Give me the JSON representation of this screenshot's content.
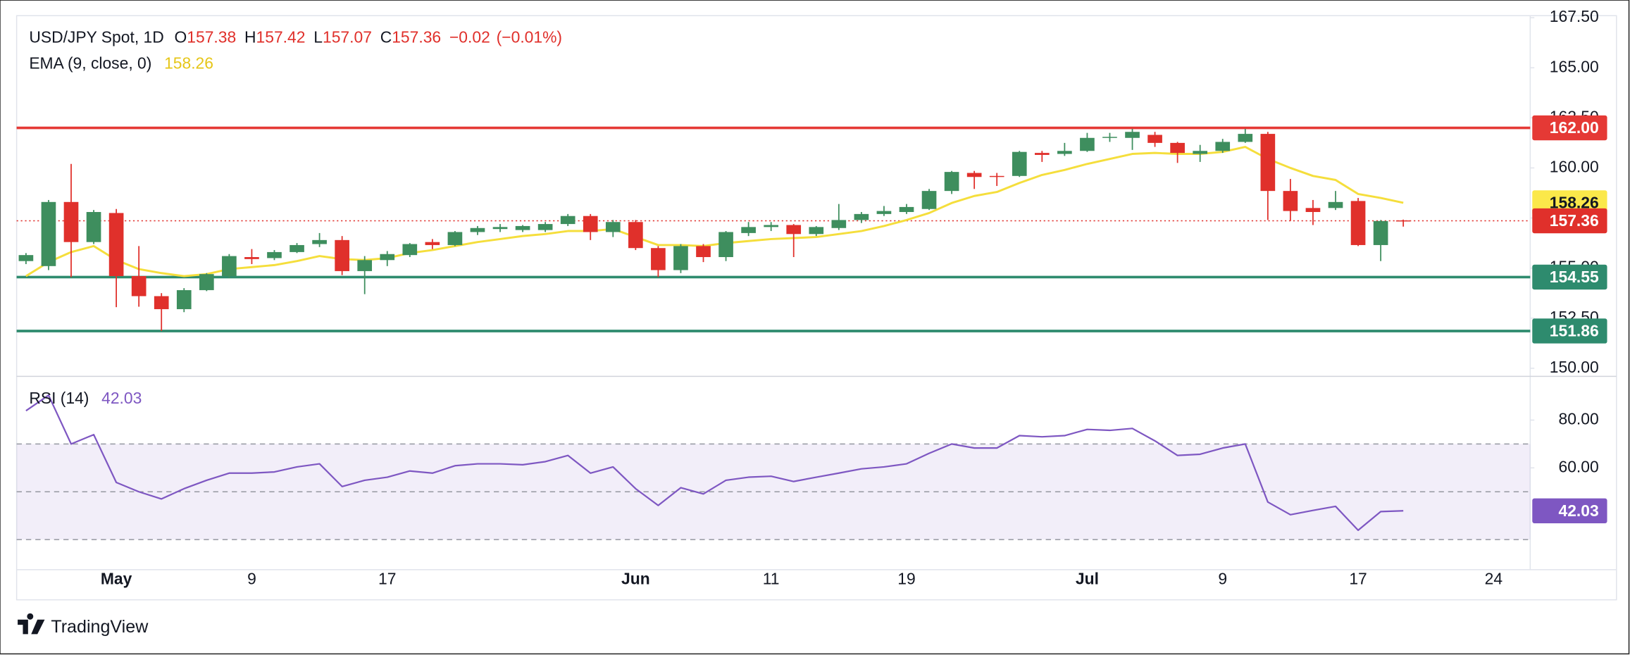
{
  "chart_data": {
    "type": "candlestick",
    "title": "USD/JPY Spot, 1D",
    "ohlc_labels": [
      "O",
      "H",
      "L",
      "C"
    ],
    "change": "−0.02",
    "change_pct": "(−0.01%)",
    "categories": [
      null,
      null,
      null,
      null,
      "May",
      null,
      null,
      null,
      null,
      null,
      "9",
      null,
      null,
      null,
      null,
      null,
      "17",
      null,
      null,
      null,
      null,
      null,
      null,
      null,
      null,
      null,
      null,
      "Jun",
      null,
      null,
      null,
      null,
      null,
      "11",
      null,
      null,
      null,
      null,
      null,
      "19",
      null,
      null,
      null,
      null,
      null,
      null,
      null,
      "Jul",
      null,
      null,
      null,
      null,
      null,
      "9",
      null,
      null,
      null,
      null,
      null,
      "17",
      null,
      null,
      null,
      null,
      null,
      "24",
      null
    ],
    "open": [
      155.35,
      155.1,
      158.3,
      156.3,
      157.75,
      154.6,
      153.6,
      152.95,
      153.9,
      154.6,
      155.55,
      155.5,
      155.8,
      156.2,
      156.4,
      154.85,
      155.4,
      155.65,
      156.3,
      156.15,
      156.8,
      156.95,
      156.9,
      156.9,
      157.2,
      157.6,
      156.8,
      157.3,
      156.0,
      154.9,
      156.1,
      155.55,
      156.75,
      157.05,
      157.15,
      156.7,
      157.0,
      157.4,
      157.7,
      157.8,
      157.95,
      158.85,
      159.75,
      159.6,
      159.6,
      160.75,
      160.7,
      160.85,
      161.5,
      161.5,
      161.65,
      161.25,
      160.7,
      160.85,
      161.3,
      161.7,
      158.85,
      158.0,
      158.0,
      158.35,
      156.15,
      157.38,
      null,
      null,
      null,
      null,
      null
    ],
    "high": [
      155.75,
      158.4,
      160.2,
      157.9,
      157.95,
      156.1,
      153.75,
      154.0,
      154.75,
      155.7,
      155.95,
      155.9,
      156.25,
      156.75,
      156.6,
      155.6,
      155.85,
      156.25,
      156.45,
      156.85,
      157.1,
      157.2,
      157.15,
      157.3,
      157.7,
      157.7,
      157.4,
      157.4,
      156.1,
      156.2,
      156.2,
      156.85,
      157.3,
      157.3,
      157.2,
      157.1,
      158.2,
      157.8,
      158.1,
      158.2,
      158.95,
      159.85,
      159.85,
      159.75,
      160.85,
      160.85,
      161.25,
      161.75,
      161.75,
      161.95,
      161.8,
      161.3,
      161.15,
      161.45,
      161.95,
      161.8,
      159.45,
      158.4,
      158.85,
      158.5,
      157.4,
      157.42,
      null,
      null,
      null,
      null,
      null
    ],
    "low": [
      155.2,
      154.9,
      154.55,
      156.2,
      153.05,
      153.07,
      151.86,
      152.8,
      153.85,
      154.5,
      155.2,
      155.4,
      155.75,
      156.05,
      154.65,
      153.7,
      155.1,
      155.55,
      155.95,
      156.1,
      156.65,
      156.8,
      156.8,
      156.8,
      157.1,
      156.4,
      156.55,
      155.9,
      154.55,
      154.75,
      155.3,
      155.35,
      156.6,
      156.85,
      155.55,
      156.6,
      156.9,
      157.25,
      157.6,
      157.7,
      157.9,
      158.7,
      158.95,
      159.1,
      159.55,
      160.3,
      160.6,
      160.8,
      161.3,
      160.9,
      161.05,
      160.25,
      160.3,
      160.75,
      161.25,
      157.4,
      157.35,
      157.15,
      157.9,
      156.1,
      155.35,
      157.07,
      null,
      null,
      null,
      null,
      null
    ],
    "close": [
      155.65,
      158.3,
      156.3,
      157.8,
      154.6,
      153.6,
      152.95,
      153.9,
      154.7,
      155.6,
      155.45,
      155.8,
      156.15,
      156.4,
      154.85,
      155.4,
      155.7,
      156.2,
      156.15,
      156.8,
      157.0,
      157.05,
      157.1,
      157.2,
      157.6,
      156.8,
      157.3,
      156.0,
      154.9,
      156.1,
      155.55,
      156.8,
      157.05,
      157.15,
      156.7,
      157.05,
      157.4,
      157.7,
      157.85,
      158.05,
      158.85,
      159.8,
      159.55,
      159.55,
      160.8,
      160.65,
      160.85,
      161.5,
      161.55,
      161.8,
      161.25,
      160.75,
      160.85,
      161.3,
      161.7,
      158.85,
      157.85,
      157.8,
      158.3,
      156.15,
      157.35,
      157.36,
      null,
      null,
      null,
      null,
      null
    ],
    "up_color": "#3e8e5e",
    "down_color": "#e0302b",
    "ema": {
      "name": "EMA (9, close, 0)",
      "color": "#f5de3c",
      "values": [
        154.6,
        155.3,
        155.8,
        156.1,
        155.4,
        154.95,
        154.75,
        154.6,
        154.7,
        154.95,
        155.05,
        155.15,
        155.35,
        155.6,
        155.45,
        155.4,
        155.5,
        155.75,
        155.9,
        156.1,
        156.3,
        156.45,
        156.6,
        156.7,
        156.85,
        156.85,
        156.95,
        156.55,
        156.15,
        156.15,
        156.1,
        156.25,
        156.35,
        156.45,
        156.5,
        156.55,
        156.7,
        156.85,
        157.1,
        157.4,
        157.75,
        158.25,
        158.6,
        158.8,
        159.25,
        159.65,
        159.9,
        160.2,
        160.45,
        160.7,
        160.75,
        160.7,
        160.7,
        160.8,
        161.05,
        160.45,
        160.0,
        159.6,
        159.4,
        158.7,
        158.5,
        158.26,
        null,
        null,
        null,
        null,
        null
      ]
    },
    "hlines": [
      {
        "value": 162,
        "label": "162.00",
        "color": "#e53935"
      },
      {
        "value": 154.55,
        "label": "154.55",
        "color": "#2e8b6e"
      },
      {
        "value": 151.86,
        "label": "151.86",
        "color": "#2e8b6e"
      }
    ],
    "ylim": [
      149.7,
      167.6
    ],
    "yticks": [
      {
        "value": 150,
        "label": "150.00"
      },
      {
        "value": 152.5,
        "label": "152.50"
      },
      {
        "value": 155,
        "label": "155.00"
      },
      {
        "value": 157.5,
        "label": "157.50"
      },
      {
        "value": 160,
        "label": "160.00"
      },
      {
        "value": 162.5,
        "label": "162.50"
      },
      {
        "value": 165,
        "label": "165.00"
      },
      {
        "value": 167.5,
        "label": "167.50"
      }
    ],
    "grid": false,
    "rsi": {
      "name": "RSI (14)",
      "color": "#7e57c2",
      "values": [
        83.9,
        90.4,
        70,
        73.9,
        53.9,
        50,
        47,
        51.3,
        54.8,
        57.8,
        57.8,
        58.3,
        60.4,
        61.7,
        52.2,
        54.8,
        56.1,
        58.7,
        57.8,
        60.9,
        61.7,
        61.7,
        61.3,
        62.6,
        65.2,
        57.8,
        60.4,
        51.3,
        44.3,
        51.7,
        49.1,
        54.8,
        56.1,
        56.5,
        54.3,
        56.1,
        57.8,
        59.6,
        60.4,
        61.7,
        66.1,
        70,
        68.3,
        68.3,
        73.5,
        73.0,
        73.5,
        76.1,
        75.7,
        76.5,
        71.3,
        65.2,
        65.7,
        68.3,
        70,
        45.7,
        40.4,
        42.2,
        43.9,
        33.9,
        41.7,
        42.03,
        null,
        null,
        null,
        null,
        null
      ],
      "ylim": [
        17.4,
        98.3
      ],
      "yticks": [
        {
          "value": 60,
          "label": "60.00"
        },
        {
          "value": 80,
          "label": "80.00"
        }
      ],
      "bands": [
        30,
        50,
        70
      ]
    },
    "brand": "TradingView"
  }
}
